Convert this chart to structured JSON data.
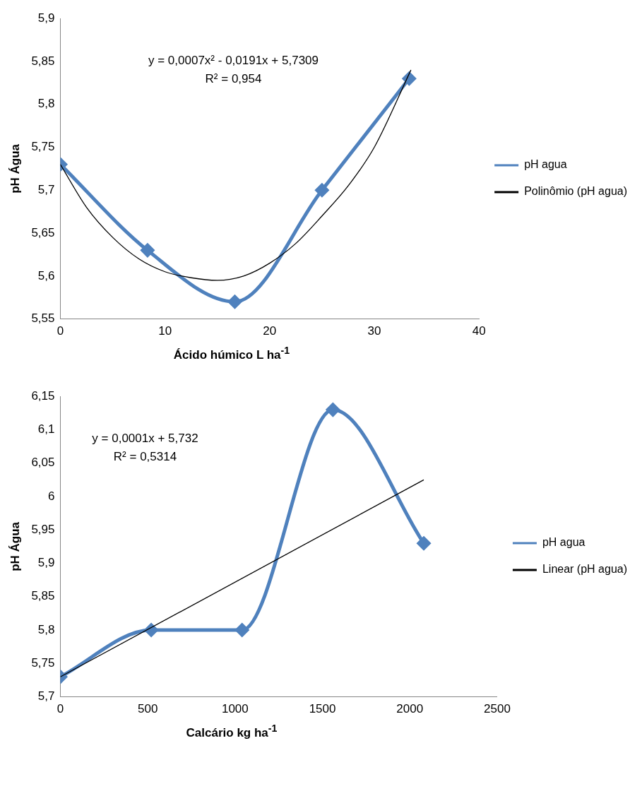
{
  "chart_data": [
    {
      "type": "line",
      "xlabel": "Ácido húmico L ha$^{-1}$",
      "ylabel": "pH Água",
      "xlim": [
        0,
        40
      ],
      "xticks": [
        0,
        10,
        20,
        30,
        40
      ],
      "ylim": [
        5.55,
        5.9
      ],
      "yticks": [
        {
          "value": 5.55,
          "label": "5,55"
        },
        {
          "value": 5.6,
          "label": "5,6"
        },
        {
          "value": 5.65,
          "label": "5,65"
        },
        {
          "value": 5.7,
          "label": "5,7"
        },
        {
          "value": 5.75,
          "label": "5,75"
        },
        {
          "value": 5.8,
          "label": "5,8"
        },
        {
          "value": 5.85,
          "label": "5,85"
        },
        {
          "value": 5.9,
          "label": "5,9"
        }
      ],
      "annotations": [
        "y = 0,0007x² - 0,0191x + 5,7309",
        "R² = 0,954"
      ],
      "legend": "right",
      "grid": false,
      "marker": "diamond",
      "series": [
        {
          "name": "pH agua",
          "color": "#4f81bd",
          "x": [
            0,
            8.33,
            16.67,
            25,
            33.33
          ],
          "values": [
            5.73,
            5.63,
            5.57,
            5.7,
            5.83
          ]
        },
        {
          "name": "Polinômio (pH agua)",
          "color": "#000000",
          "marker": "none",
          "x": [
            0,
            2.5,
            5,
            7.5,
            10,
            12.5,
            15,
            17.5,
            20,
            22.5,
            25,
            27.5,
            30,
            33.5
          ],
          "values": [
            5.73,
            5.68,
            5.645,
            5.62,
            5.605,
            5.598,
            5.595,
            5.6,
            5.615,
            5.638,
            5.67,
            5.705,
            5.75,
            5.84
          ]
        }
      ]
    },
    {
      "type": "line",
      "xlabel": "Calcário kg ha$^{-1}$",
      "ylabel": "pH Água",
      "xlim": [
        0,
        2500
      ],
      "xticks": [
        0,
        500,
        1000,
        1500,
        2000,
        2500
      ],
      "ylim": [
        5.7,
        6.15
      ],
      "yticks": [
        {
          "value": 5.7,
          "label": "5,7"
        },
        {
          "value": 5.75,
          "label": "5,75"
        },
        {
          "value": 5.8,
          "label": "5,8"
        },
        {
          "value": 5.85,
          "label": "5,85"
        },
        {
          "value": 5.9,
          "label": "5,9"
        },
        {
          "value": 5.95,
          "label": "5,95"
        },
        6,
        {
          "value": 6.05,
          "label": "6,05"
        },
        {
          "value": 6.1,
          "label": "6,1"
        },
        {
          "value": 6.15,
          "label": "6,15"
        }
      ],
      "annotations": [
        "y = 0,0001x + 5,732",
        "R² = 0,5314"
      ],
      "legend": "right",
      "grid": false,
      "marker": "diamond",
      "series": [
        {
          "name": "pH agua",
          "color": "#4f81bd",
          "x": [
            0,
            520,
            1040,
            1560,
            2080
          ],
          "values": [
            5.73,
            5.8,
            5.8,
            6.13,
            5.93
          ]
        },
        {
          "name": "Linear (pH agua)",
          "color": "#000000",
          "marker": "none",
          "x": [
            0,
            2080
          ],
          "values": [
            5.73,
            6.025
          ]
        }
      ]
    }
  ]
}
